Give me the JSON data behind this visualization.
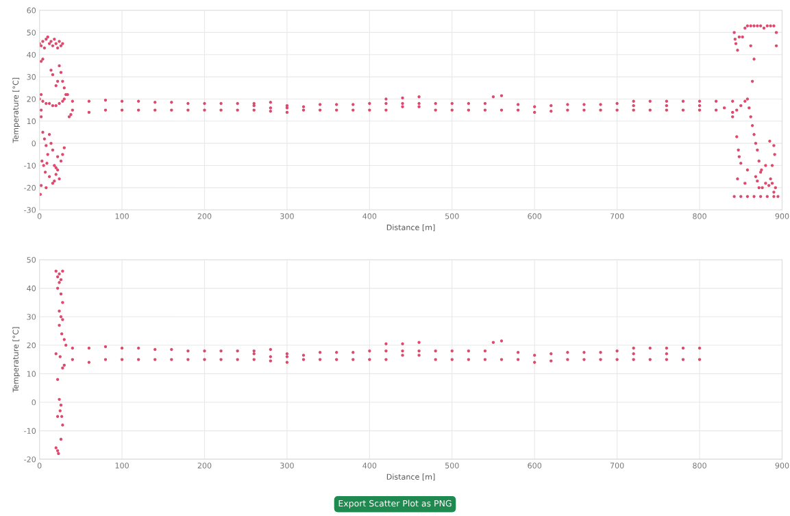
{
  "chart_data": [
    {
      "type": "scatter",
      "xlabel": "Distance [m]",
      "ylabel": "Temperature [°C]",
      "xlim": [
        0,
        900
      ],
      "ylim": [
        -30,
        60
      ],
      "xticks": [
        0,
        100,
        200,
        300,
        400,
        500,
        600,
        700,
        800,
        900
      ],
      "yticks": [
        -30,
        -20,
        -10,
        0,
        10,
        20,
        30,
        40,
        50,
        60
      ],
      "grid": true,
      "marker": "circle",
      "legend": false,
      "series": [
        {
          "color": "#dc4b6e",
          "x": [
            0,
            2,
            4,
            6,
            8,
            10,
            12,
            14,
            16,
            18,
            20,
            22,
            24,
            26,
            28,
            4,
            2,
            14,
            16,
            24,
            26,
            28,
            30,
            32,
            22,
            20,
            0,
            2,
            4,
            8,
            12,
            16,
            20,
            24,
            28,
            30,
            34,
            36,
            38,
            2,
            2,
            4,
            6,
            8,
            10,
            3,
            5,
            7,
            9,
            12,
            14,
            16,
            18,
            20,
            22,
            24,
            26,
            28,
            30,
            12,
            16,
            18,
            8,
            2,
            1,
            20,
            22
          ],
          "values": [
            45,
            44,
            46,
            43,
            47,
            48,
            45,
            46,
            44,
            47,
            45,
            43,
            46,
            44,
            45,
            38,
            37,
            33,
            31,
            35,
            32,
            28,
            25,
            22,
            28,
            26,
            20,
            22,
            19,
            18,
            18,
            17,
            17,
            18,
            19,
            20,
            22,
            12,
            13,
            15,
            12,
            5,
            2,
            -1,
            -5,
            -8,
            -10,
            -13,
            -9,
            4,
            0,
            -3,
            -10,
            -14,
            -12,
            -16,
            -8,
            -5,
            -2,
            -15,
            -18,
            -17,
            -20,
            -19,
            -23,
            -11,
            -6
          ]
        },
        {
          "color": "#dc4b6e",
          "x": [
            40,
            60,
            80,
            100,
            120,
            140,
            160,
            180,
            200,
            220,
            240,
            260,
            280,
            300,
            320,
            340,
            360,
            380,
            400,
            420,
            440,
            460,
            480,
            500,
            520,
            540,
            550,
            560,
            580,
            600,
            620,
            640,
            660,
            680,
            700,
            720,
            740,
            760,
            780,
            800,
            820,
            840
          ],
          "values": [
            19,
            19,
            19.5,
            19,
            19,
            18.5,
            18.5,
            18,
            18,
            18,
            18,
            18,
            18.5,
            17,
            16.5,
            17.5,
            17.5,
            17.5,
            18,
            20,
            20.5,
            21,
            18,
            18,
            18,
            18,
            21,
            21.5,
            17.5,
            16.5,
            17,
            17.5,
            17.5,
            17.5,
            18,
            19,
            19,
            19,
            19,
            19,
            19,
            19
          ]
        },
        {
          "color": "#dc4b6e",
          "x": [
            260,
            280,
            300,
            420,
            440,
            460,
            720,
            760,
            800,
            830
          ],
          "values": [
            17,
            16,
            16,
            18,
            18,
            18,
            17,
            17,
            17,
            16
          ]
        },
        {
          "color": "#dc4b6e",
          "x": [
            40,
            60,
            80,
            100,
            120,
            140,
            160,
            180,
            200,
            220,
            240,
            260,
            280,
            300,
            320,
            340,
            360,
            380,
            400,
            420,
            440,
            460,
            480,
            500,
            520,
            540,
            560,
            580,
            600,
            620,
            640,
            660,
            680,
            700,
            720,
            740,
            760,
            780,
            800,
            820,
            840
          ],
          "values": [
            15,
            14,
            15,
            15,
            15,
            15,
            15,
            15,
            15,
            15,
            15,
            15,
            14.5,
            14,
            15,
            15,
            15,
            15,
            15,
            15,
            16.5,
            16.5,
            15,
            15,
            15,
            15,
            15,
            15,
            14,
            14.5,
            15,
            15,
            15,
            15,
            15,
            15,
            15,
            15,
            15,
            15,
            14
          ]
        },
        {
          "color": "#dc4b6e",
          "x": [
            840,
            845,
            850,
            855,
            858,
            860,
            862,
            864,
            866,
            868,
            870,
            872,
            875,
            842,
            844,
            846,
            843,
            848,
            852,
            855,
            858,
            862,
            866,
            870,
            874,
            878,
            882,
            886,
            890,
            893,
            893,
            862,
            866,
            864,
            845,
            847,
            848,
            850,
            846,
            855,
            858,
            880,
            888,
            890,
            885,
            891,
            868,
            872,
            876,
            880,
            884,
            888,
            892,
            870,
            874,
            886,
            890,
            842,
            850,
            858,
            866,
            874,
            882,
            890,
            895
          ],
          "values": [
            12,
            15,
            17,
            19,
            20,
            16,
            12,
            8,
            4,
            0,
            -3,
            -8,
            -12,
            50,
            45,
            42,
            47,
            48,
            48,
            52,
            53,
            53,
            53,
            53,
            53,
            52,
            53,
            53,
            53,
            50,
            44,
            44,
            38,
            28,
            3,
            -3,
            -6,
            -9,
            -16,
            -18,
            -12,
            -10,
            -10,
            -1,
            1,
            -5,
            -15,
            -20,
            -20,
            -18,
            -19,
            -18,
            -20,
            -17,
            -13,
            -16,
            -22,
            -24,
            -24,
            -24,
            -24,
            -24,
            -24,
            -24,
            -24
          ]
        }
      ]
    },
    {
      "type": "scatter",
      "xlabel": "Distance [m]",
      "ylabel": "Temperature [°C]",
      "xlim": [
        0,
        900
      ],
      "ylim": [
        -20,
        50
      ],
      "xticks": [
        0,
        100,
        200,
        300,
        400,
        500,
        600,
        700,
        800,
        900
      ],
      "yticks": [
        -20,
        -10,
        0,
        10,
        20,
        30,
        40,
        50
      ],
      "grid": true,
      "marker": "circle",
      "legend": false,
      "annotations": [
        "Export Scatter Plot as PNG"
      ],
      "series": [
        {
          "color": "#dc4b6e",
          "x": [
            20,
            22,
            24,
            26,
            28,
            22,
            24,
            26,
            28,
            24,
            26,
            28,
            24,
            27,
            20,
            25,
            30,
            32,
            28,
            30,
            22,
            24,
            26,
            25,
            22,
            27,
            28,
            26,
            20,
            22,
            23
          ],
          "values": [
            46,
            44,
            45,
            43,
            46,
            40,
            42,
            38,
            35,
            32,
            30,
            29,
            27,
            24,
            17,
            16,
            22,
            20,
            12,
            13,
            8,
            1,
            -1,
            -3,
            -5,
            -5,
            -8,
            -13,
            -16,
            -17,
            -18
          ]
        },
        {
          "color": "#dc4b6e",
          "x": [
            40,
            60,
            80,
            100,
            120,
            140,
            160,
            180,
            200,
            220,
            240,
            260,
            280,
            300,
            320,
            340,
            360,
            380,
            400,
            420,
            440,
            460,
            480,
            500,
            520,
            540,
            550,
            560,
            580,
            600,
            620,
            640,
            660,
            680,
            700,
            720,
            740,
            760,
            780,
            800
          ],
          "values": [
            19,
            19,
            19.5,
            19,
            19,
            18.5,
            18.5,
            18,
            18,
            18,
            18,
            18,
            18.5,
            17,
            16.5,
            17.5,
            17.5,
            17.5,
            18,
            20.5,
            20.5,
            21,
            18,
            18,
            18,
            18,
            21,
            21.5,
            17.5,
            16.5,
            17,
            17.5,
            17.5,
            17.5,
            18,
            19,
            19,
            19,
            19,
            19
          ]
        },
        {
          "color": "#dc4b6e",
          "x": [
            260,
            280,
            300,
            420,
            440,
            460,
            720,
            760
          ],
          "values": [
            17,
            16,
            16,
            18,
            18,
            18,
            17,
            17
          ]
        },
        {
          "color": "#dc4b6e",
          "x": [
            40,
            60,
            80,
            100,
            120,
            140,
            160,
            180,
            200,
            220,
            240,
            260,
            280,
            300,
            320,
            340,
            360,
            380,
            400,
            420,
            440,
            460,
            480,
            500,
            520,
            540,
            560,
            580,
            600,
            620,
            640,
            660,
            680,
            700,
            720,
            740,
            760,
            780,
            800
          ],
          "values": [
            15,
            14,
            15,
            15,
            15,
            15,
            15,
            15,
            15,
            15,
            15,
            15,
            14.5,
            14,
            15,
            15,
            15,
            15,
            15,
            15,
            16.5,
            16.5,
            15,
            15,
            15,
            15,
            15,
            15,
            14,
            14.5,
            15,
            15,
            15,
            15,
            15,
            15,
            15,
            15,
            15
          ]
        }
      ]
    }
  ]
}
